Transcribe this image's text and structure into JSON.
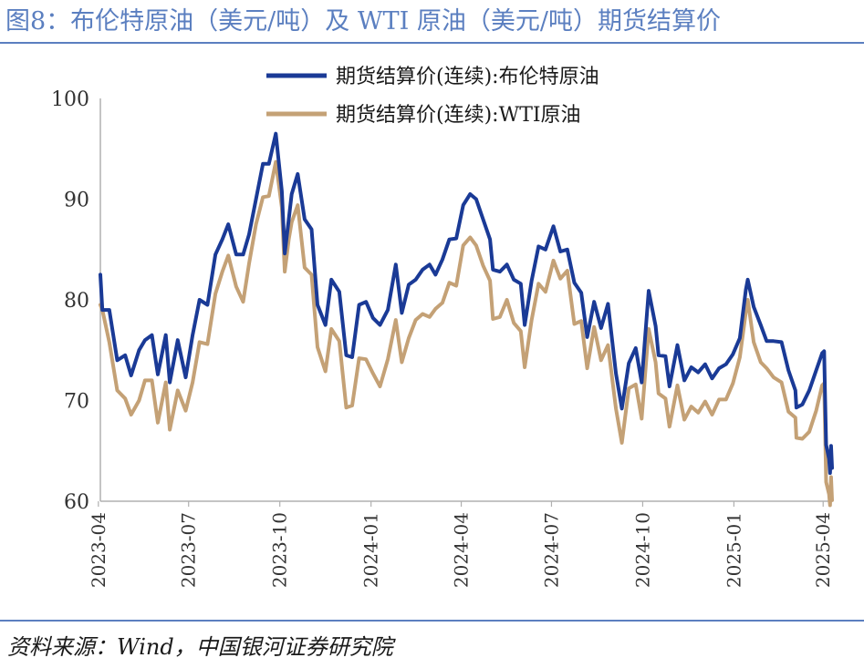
{
  "figure": {
    "title": "图8：布伦特原油（美元/吨）及 WTI 原油（美元/吨）期货结算价",
    "source": "资料来源：Wind，中国银河证券研究院"
  },
  "colors": {
    "brent": "#1a3a96",
    "wti": "#c4a176",
    "rule": "#5b7fc0"
  },
  "chart_data": {
    "type": "line",
    "ylim": [
      60,
      100
    ],
    "yticks": [
      60,
      70,
      80,
      90,
      100
    ],
    "xlim": [
      "2023-04-03",
      "2025-04-10"
    ],
    "xticks": [
      "2023-04",
      "2023-07",
      "2023-10",
      "2024-01",
      "2024-04",
      "2024-07",
      "2024-10",
      "2025-01",
      "2025-04"
    ],
    "legend": {
      "position": "top-center"
    },
    "series": [
      {
        "name": "期货结算价(连续):布伦特原油",
        "color": "#1a3a96",
        "points": [
          [
            "2023-04-03",
            82.5
          ],
          [
            "2023-04-05",
            79
          ],
          [
            "2023-04-12",
            79
          ],
          [
            "2023-04-20",
            74
          ],
          [
            "2023-04-28",
            74.5
          ],
          [
            "2023-05-04",
            72.5
          ],
          [
            "2023-05-12",
            75
          ],
          [
            "2023-05-18",
            76
          ],
          [
            "2023-05-25",
            76.5
          ],
          [
            "2023-05-31",
            72.6
          ],
          [
            "2023-06-08",
            76.5
          ],
          [
            "2023-06-12",
            71.8
          ],
          [
            "2023-06-20",
            76
          ],
          [
            "2023-06-28",
            72.3
          ],
          [
            "2023-07-05",
            76.5
          ],
          [
            "2023-07-12",
            80
          ],
          [
            "2023-07-20",
            79.5
          ],
          [
            "2023-07-28",
            84.5
          ],
          [
            "2023-08-04",
            86
          ],
          [
            "2023-08-10",
            87.5
          ],
          [
            "2023-08-18",
            84.5
          ],
          [
            "2023-08-25",
            84.5
          ],
          [
            "2023-08-31",
            86.5
          ],
          [
            "2023-09-07",
            90
          ],
          [
            "2023-09-14",
            93.5
          ],
          [
            "2023-09-20",
            93.5
          ],
          [
            "2023-09-27",
            96.5
          ],
          [
            "2023-10-03",
            90.8
          ],
          [
            "2023-10-06",
            84.6
          ],
          [
            "2023-10-10",
            88
          ],
          [
            "2023-10-13",
            90.5
          ],
          [
            "2023-10-19",
            92.5
          ],
          [
            "2023-10-26",
            88
          ],
          [
            "2023-11-02",
            87
          ],
          [
            "2023-11-08",
            79.5
          ],
          [
            "2023-11-16",
            77.5
          ],
          [
            "2023-11-22",
            82
          ],
          [
            "2023-11-30",
            80.8
          ],
          [
            "2023-12-07",
            74.5
          ],
          [
            "2023-12-13",
            74.3
          ],
          [
            "2023-12-20",
            79.5
          ],
          [
            "2023-12-27",
            79.8
          ],
          [
            "2024-01-03",
            78.2
          ],
          [
            "2024-01-10",
            77.5
          ],
          [
            "2024-01-18",
            79
          ],
          [
            "2024-01-26",
            83.5
          ],
          [
            "2024-02-01",
            78.7
          ],
          [
            "2024-02-08",
            81.5
          ],
          [
            "2024-02-15",
            82
          ],
          [
            "2024-02-22",
            83
          ],
          [
            "2024-02-29",
            83.5
          ],
          [
            "2024-03-06",
            82.5
          ],
          [
            "2024-03-13",
            84
          ],
          [
            "2024-03-20",
            86
          ],
          [
            "2024-03-27",
            86.1
          ],
          [
            "2024-04-03",
            89.4
          ],
          [
            "2024-04-10",
            90.5
          ],
          [
            "2024-04-16",
            90
          ],
          [
            "2024-04-23",
            88
          ],
          [
            "2024-04-30",
            86
          ],
          [
            "2024-05-03",
            83
          ],
          [
            "2024-05-10",
            82.8
          ],
          [
            "2024-05-17",
            83.5
          ],
          [
            "2024-05-24",
            82
          ],
          [
            "2024-05-31",
            81.6
          ],
          [
            "2024-06-04",
            77.5
          ],
          [
            "2024-06-11",
            81.9
          ],
          [
            "2024-06-18",
            85.3
          ],
          [
            "2024-06-25",
            85
          ],
          [
            "2024-07-03",
            87.3
          ],
          [
            "2024-07-10",
            84.8
          ],
          [
            "2024-07-17",
            85
          ],
          [
            "2024-07-24",
            81.7
          ],
          [
            "2024-07-31",
            80.7
          ],
          [
            "2024-08-06",
            76.3
          ],
          [
            "2024-08-13",
            79.8
          ],
          [
            "2024-08-20",
            77.2
          ],
          [
            "2024-08-27",
            79.6
          ],
          [
            "2024-09-04",
            72.7
          ],
          [
            "2024-09-10",
            69.2
          ],
          [
            "2024-09-17",
            73.7
          ],
          [
            "2024-09-24",
            75.2
          ],
          [
            "2024-09-30",
            71.8
          ],
          [
            "2024-10-07",
            80.9
          ],
          [
            "2024-10-14",
            77.4
          ],
          [
            "2024-10-17",
            74.5
          ],
          [
            "2024-10-24",
            74.4
          ],
          [
            "2024-10-28",
            71.4
          ],
          [
            "2024-11-05",
            75.5
          ],
          [
            "2024-11-12",
            72
          ],
          [
            "2024-11-19",
            73.3
          ],
          [
            "2024-11-26",
            72.8
          ],
          [
            "2024-12-03",
            73.6
          ],
          [
            "2024-12-10",
            72.2
          ],
          [
            "2024-12-17",
            73.2
          ],
          [
            "2024-12-24",
            73.6
          ],
          [
            "2024-12-31",
            74.6
          ],
          [
            "2025-01-07",
            76.2
          ],
          [
            "2025-01-13",
            81
          ],
          [
            "2025-01-15",
            82
          ],
          [
            "2025-01-21",
            79.3
          ],
          [
            "2025-01-28",
            77.5
          ],
          [
            "2025-02-03",
            75.9
          ],
          [
            "2025-02-10",
            75.9
          ],
          [
            "2025-02-18",
            75.8
          ],
          [
            "2025-02-25",
            73
          ],
          [
            "2025-03-04",
            71
          ],
          [
            "2025-03-05",
            69.3
          ],
          [
            "2025-03-11",
            69.6
          ],
          [
            "2025-03-18",
            71
          ],
          [
            "2025-03-25",
            73
          ],
          [
            "2025-03-31",
            74.7
          ],
          [
            "2025-04-02",
            74.9
          ],
          [
            "2025-04-03",
            70.1
          ],
          [
            "2025-04-04",
            65.6
          ],
          [
            "2025-04-07",
            64.2
          ],
          [
            "2025-04-08",
            62.8
          ],
          [
            "2025-04-09",
            65.5
          ],
          [
            "2025-04-10",
            63.3
          ]
        ]
      },
      {
        "name": "期货结算价(连续):WTI原油",
        "color": "#c4a176",
        "points": [
          [
            "2023-04-03",
            79.5
          ],
          [
            "2023-04-05",
            79
          ],
          [
            "2023-04-12",
            75.8
          ],
          [
            "2023-04-20",
            71
          ],
          [
            "2023-04-28",
            70.2
          ],
          [
            "2023-05-04",
            68.6
          ],
          [
            "2023-05-12",
            70
          ],
          [
            "2023-05-18",
            72
          ],
          [
            "2023-05-25",
            72
          ],
          [
            "2023-05-31",
            67.8
          ],
          [
            "2023-06-08",
            71.8
          ],
          [
            "2023-06-12",
            67.1
          ],
          [
            "2023-06-20",
            71
          ],
          [
            "2023-06-28",
            69
          ],
          [
            "2023-07-05",
            71.8
          ],
          [
            "2023-07-12",
            75.8
          ],
          [
            "2023-07-20",
            75.6
          ],
          [
            "2023-07-28",
            80.6
          ],
          [
            "2023-08-04",
            82.8
          ],
          [
            "2023-08-10",
            84.4
          ],
          [
            "2023-08-18",
            81.3
          ],
          [
            "2023-08-25",
            79.8
          ],
          [
            "2023-08-31",
            83.6
          ],
          [
            "2023-09-07",
            87.5
          ],
          [
            "2023-09-14",
            90.2
          ],
          [
            "2023-09-20",
            90.3
          ],
          [
            "2023-09-27",
            93.7
          ],
          [
            "2023-10-03",
            89.2
          ],
          [
            "2023-10-06",
            82.8
          ],
          [
            "2023-10-10",
            86
          ],
          [
            "2023-10-13",
            87.7
          ],
          [
            "2023-10-19",
            89.4
          ],
          [
            "2023-10-26",
            83.2
          ],
          [
            "2023-11-02",
            82.5
          ],
          [
            "2023-11-08",
            75.3
          ],
          [
            "2023-11-16",
            72.9
          ],
          [
            "2023-11-22",
            77.1
          ],
          [
            "2023-11-30",
            75.9
          ],
          [
            "2023-12-07",
            69.3
          ],
          [
            "2023-12-13",
            69.5
          ],
          [
            "2023-12-20",
            74.2
          ],
          [
            "2023-12-27",
            74.1
          ],
          [
            "2024-01-03",
            72.7
          ],
          [
            "2024-01-10",
            71.4
          ],
          [
            "2024-01-18",
            74.1
          ],
          [
            "2024-01-26",
            78
          ],
          [
            "2024-02-01",
            73.8
          ],
          [
            "2024-02-08",
            76.2
          ],
          [
            "2024-02-15",
            78
          ],
          [
            "2024-02-22",
            78.6
          ],
          [
            "2024-02-29",
            78.3
          ],
          [
            "2024-03-06",
            79.1
          ],
          [
            "2024-03-13",
            79.7
          ],
          [
            "2024-03-20",
            81.7
          ],
          [
            "2024-03-27",
            81.4
          ],
          [
            "2024-04-03",
            85.4
          ],
          [
            "2024-04-10",
            86.2
          ],
          [
            "2024-04-16",
            85.4
          ],
          [
            "2024-04-23",
            83.4
          ],
          [
            "2024-04-30",
            81.9
          ],
          [
            "2024-05-03",
            78.1
          ],
          [
            "2024-05-10",
            78.3
          ],
          [
            "2024-05-17",
            80
          ],
          [
            "2024-05-24",
            77.7
          ],
          [
            "2024-05-31",
            76.9
          ],
          [
            "2024-06-04",
            73.3
          ],
          [
            "2024-06-11",
            78
          ],
          [
            "2024-06-18",
            81.6
          ],
          [
            "2024-06-25",
            80.8
          ],
          [
            "2024-07-03",
            83.9
          ],
          [
            "2024-07-10",
            82.1
          ],
          [
            "2024-07-17",
            82.9
          ],
          [
            "2024-07-24",
            77.6
          ],
          [
            "2024-07-31",
            77.9
          ],
          [
            "2024-08-06",
            73.2
          ],
          [
            "2024-08-13",
            77.3
          ],
          [
            "2024-08-20",
            74
          ],
          [
            "2024-08-27",
            75.5
          ],
          [
            "2024-09-04",
            69.2
          ],
          [
            "2024-09-10",
            65.8
          ],
          [
            "2024-09-17",
            71.2
          ],
          [
            "2024-09-24",
            71.6
          ],
          [
            "2024-09-30",
            68.2
          ],
          [
            "2024-10-07",
            77.1
          ],
          [
            "2024-10-14",
            73.8
          ],
          [
            "2024-10-17",
            70.7
          ],
          [
            "2024-10-24",
            70.2
          ],
          [
            "2024-10-28",
            67.4
          ],
          [
            "2024-11-05",
            71.5
          ],
          [
            "2024-11-12",
            68.1
          ],
          [
            "2024-11-19",
            69.4
          ],
          [
            "2024-11-26",
            68.8
          ],
          [
            "2024-12-03",
            69.9
          ],
          [
            "2024-12-10",
            68.6
          ],
          [
            "2024-12-17",
            70.1
          ],
          [
            "2024-12-24",
            70.1
          ],
          [
            "2024-12-31",
            71.7
          ],
          [
            "2025-01-07",
            74.3
          ],
          [
            "2025-01-13",
            78.8
          ],
          [
            "2025-01-15",
            80
          ],
          [
            "2025-01-21",
            75.8
          ],
          [
            "2025-01-28",
            73.8
          ],
          [
            "2025-02-03",
            73.2
          ],
          [
            "2025-02-10",
            72.3
          ],
          [
            "2025-02-18",
            71.8
          ],
          [
            "2025-02-25",
            68.9
          ],
          [
            "2025-03-04",
            68.3
          ],
          [
            "2025-03-05",
            66.3
          ],
          [
            "2025-03-11",
            66.2
          ],
          [
            "2025-03-18",
            66.9
          ],
          [
            "2025-03-25",
            69
          ],
          [
            "2025-03-31",
            71.5
          ],
          [
            "2025-04-02",
            71.7
          ],
          [
            "2025-04-03",
            66.9
          ],
          [
            "2025-04-04",
            61.9
          ],
          [
            "2025-04-07",
            60.7
          ],
          [
            "2025-04-08",
            59.6
          ],
          [
            "2025-04-09",
            62.4
          ],
          [
            "2025-04-10",
            60.1
          ]
        ]
      }
    ]
  }
}
